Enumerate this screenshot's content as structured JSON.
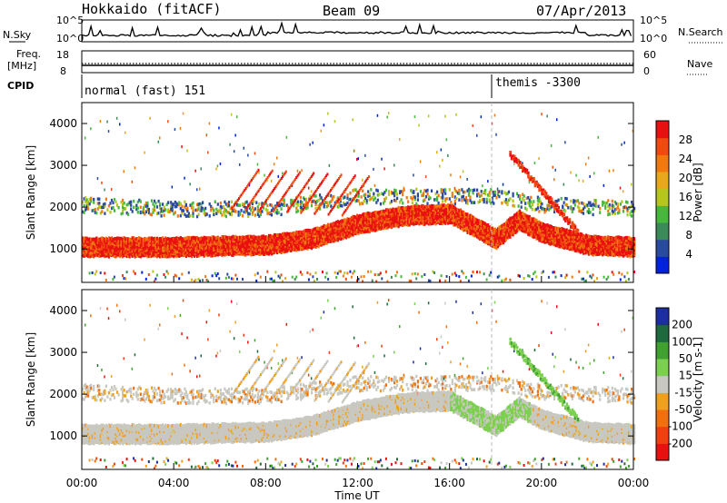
{
  "header": {
    "station": "Hokkaido (fitACF)",
    "beam": "Beam 09",
    "date": "07/Apr/2013"
  },
  "top_panels": {
    "nsky_label": "N.Sky",
    "nsky_ticks": [
      "10^5",
      "10^0"
    ],
    "nsearch_label": "N.Search",
    "nsearch_ticks": [
      "10^5",
      "10^0"
    ],
    "freq_label": "Freq.",
    "freq_unit": "[MHz]",
    "freq_ticks": [
      "18",
      "8"
    ],
    "nave_label": "Nave",
    "nave_ticks": [
      "60",
      "0"
    ],
    "cpid_label": "CPID",
    "cpid_segments": [
      {
        "label": "normal (fast) 151",
        "start_hour": 0
      },
      {
        "label": "themis -3300",
        "start_hour": 18
      }
    ]
  },
  "chart_data": [
    {
      "type": "heatmap",
      "name": "power",
      "xlabel": "",
      "ylabel": "Slant Range [km]",
      "xlim": [
        0,
        24
      ],
      "ylim": [
        200,
        4500
      ],
      "y_ticks": [
        1000,
        2000,
        3000,
        4000
      ],
      "colorbar_label": "Power [dB]",
      "colorbar_ticks": [
        "4",
        "8",
        "12",
        "16",
        "20",
        "24",
        "28"
      ],
      "colorbar_colors": [
        "#0022dd",
        "#2a4aa0",
        "#3c8a5a",
        "#46b83c",
        "#b6c61e",
        "#e8a81c",
        "#f07a10",
        "#f04a10",
        "#e81010"
      ],
      "features": [
        {
          "band": "main echo",
          "value_db": 28,
          "path": [
            [
              0,
              1100
            ],
            [
              4,
              1100
            ],
            [
              8,
              1150
            ],
            [
              10,
              1300
            ],
            [
              12,
              1650
            ],
            [
              14,
              1850
            ],
            [
              16,
              1900
            ],
            [
              18,
              1300
            ],
            [
              19,
              1750
            ],
            [
              20,
              1450
            ],
            [
              22,
              1150
            ],
            [
              24,
              1100
            ]
          ]
        },
        {
          "band": "upper echo",
          "value_db": 18,
          "path": [
            [
              0,
              2100
            ],
            [
              4,
              2000
            ],
            [
              8,
              2000
            ],
            [
              12,
              2300
            ],
            [
              16,
              2300
            ],
            [
              18,
              2300
            ],
            [
              20,
              2100
            ],
            [
              24,
              2000
            ]
          ]
        }
      ]
    },
    {
      "type": "heatmap",
      "name": "velocity",
      "xlabel": "Time UT",
      "ylabel": "Slant Range [km]",
      "xlim": [
        0,
        24
      ],
      "ylim": [
        200,
        4500
      ],
      "x_ticks": [
        "00:00",
        "04:00",
        "08:00",
        "12:00",
        "16:00",
        "20:00",
        "00:00"
      ],
      "y_ticks": [
        1000,
        2000,
        3000,
        4000
      ],
      "colorbar_label": "Velocity [m s-1]",
      "colorbar_ticks": [
        "200",
        "100",
        "50",
        "15",
        "-15",
        "-50",
        "-100",
        "-200"
      ],
      "colorbar_colors": [
        "#1c2ea0",
        "#1e6a3e",
        "#40a030",
        "#7cd050",
        "#c8c8c0",
        "#f0a020",
        "#f07010",
        "#f04010",
        "#e81010"
      ]
    }
  ]
}
